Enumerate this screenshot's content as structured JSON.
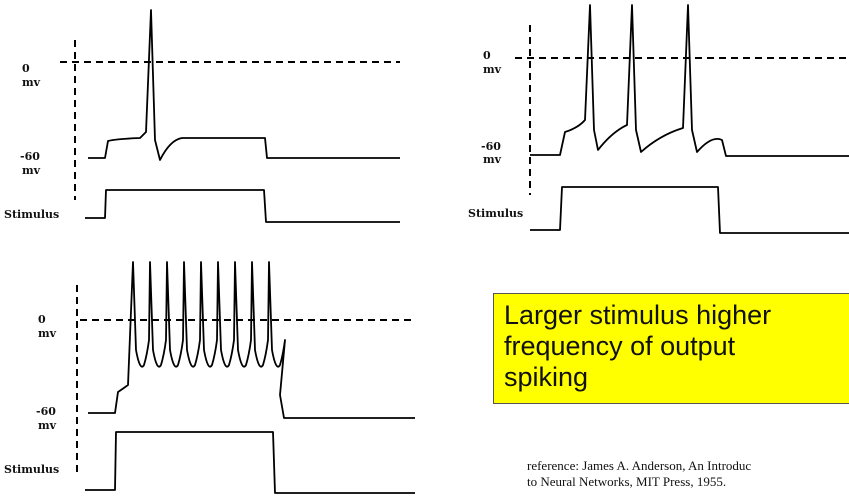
{
  "panels": [
    {
      "zero_label": "0",
      "zero_unit": "mv",
      "rest_label": "-60",
      "rest_unit": "mv",
      "stimulus_label": "Stimulus"
    },
    {
      "zero_label": "0",
      "zero_unit": "mv",
      "rest_label": "-60",
      "rest_unit": "mv",
      "stimulus_label": "Stimulus"
    },
    {
      "zero_label": "0",
      "zero_unit": "mv",
      "rest_label": "-60",
      "rest_unit": "mv",
      "stimulus_label": "Stimulus"
    }
  ],
  "callout": {
    "lines": [
      "Larger stimulus higher",
      "frequency of output",
      "spiking"
    ]
  },
  "reference": {
    "lines": [
      "reference: James A. Anderson, An Introduc",
      "to Neural Networks, MIT Press, 1955."
    ]
  }
}
